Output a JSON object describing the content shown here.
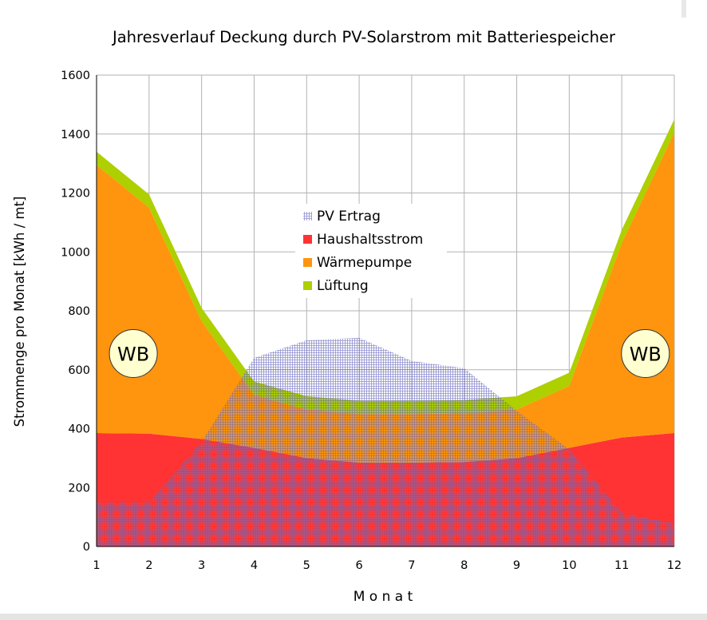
{
  "chart_data": {
    "type": "area",
    "title": "Jahresverlauf Deckung durch PV-Solarstrom mit Batteriespeicher",
    "xlabel": "M o n a t",
    "ylabel": "Strommenge pro Monat [kWh / mt]",
    "x": [
      1,
      2,
      3,
      4,
      5,
      6,
      7,
      8,
      9,
      10,
      11,
      12
    ],
    "xlim": [
      1,
      12
    ],
    "ylim": [
      0,
      1600
    ],
    "yticks": [
      0,
      200,
      400,
      600,
      800,
      1000,
      1200,
      1400,
      1600
    ],
    "grid": true,
    "legend_position": "center",
    "stacked_series": [
      {
        "name": "Haushaltsstrom",
        "color": "#ff3333",
        "values": [
          385,
          383,
          365,
          335,
          300,
          285,
          285,
          287,
          300,
          335,
          370,
          385
        ]
      },
      {
        "name": "Wärmepumpe",
        "color": "#ff950e",
        "values": [
          910,
          767,
          400,
          180,
          165,
          165,
          165,
          165,
          165,
          210,
          660,
          1020
        ]
      },
      {
        "name": "Lüftung",
        "color": "#aecf00",
        "values": [
          45,
          45,
          45,
          45,
          45,
          45,
          45,
          45,
          45,
          45,
          45,
          45
        ]
      }
    ],
    "overlay_series": {
      "name": "PV Ertrag",
      "color": "#7d7dc4",
      "pattern": "grid",
      "values": [
        150,
        150,
        355,
        640,
        700,
        708,
        630,
        605,
        460,
        330,
        115,
        78
      ]
    },
    "legend": [
      {
        "name": "PV Ertrag",
        "color": "#9a9ad0",
        "marker": "hatch"
      },
      {
        "name": "Haushaltsstrom",
        "color": "#ff3333"
      },
      {
        "name": "Wärmepumpe",
        "color": "#ff950e"
      },
      {
        "name": "Lüftung",
        "color": "#aecf00"
      }
    ],
    "annotations": [
      {
        "text": "WB",
        "x": 1.7,
        "y": 655
      },
      {
        "text": "WB",
        "x": 11.45,
        "y": 655
      }
    ]
  }
}
